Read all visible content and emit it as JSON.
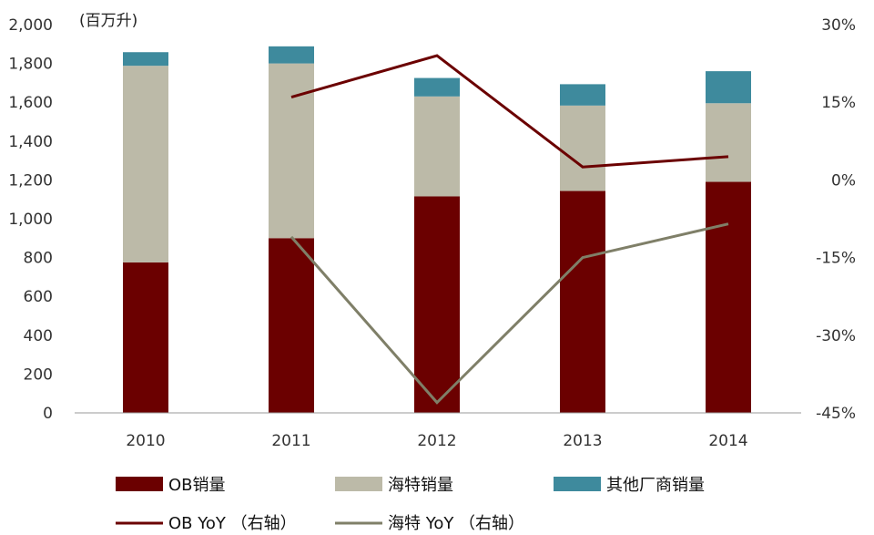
{
  "chart_data": {
    "type": "bar",
    "stacked": true,
    "unit_label": "(百万升)",
    "categories": [
      "2010",
      "2011",
      "2012",
      "2013",
      "2014"
    ],
    "ylim": [
      0,
      2000
    ],
    "yticks": [
      "2,000",
      "1,800",
      "1,600",
      "1,400",
      "1,200",
      "1,000",
      "800",
      "600",
      "400",
      "200",
      "0"
    ],
    "y2lim": [
      -45,
      30
    ],
    "y2ticks": [
      "30%",
      "15%",
      "0%",
      "-15%",
      "-30%",
      "-45%"
    ],
    "bar_series": [
      {
        "name": "OB销量",
        "color": "#6b0000",
        "values": [
          775,
          900,
          1115,
          1143,
          1190
        ]
      },
      {
        "name": "海特销量",
        "color": "#bcbaa8",
        "values": [
          1013,
          900,
          515,
          440,
          405
        ]
      },
      {
        "name": "其他厂商销量",
        "color": "#3e8a9d",
        "values": [
          70,
          88,
          95,
          110,
          165
        ]
      }
    ],
    "line_series": [
      {
        "name": "OB YoY （右轴）",
        "color": "#6b0000",
        "values": [
          null,
          16,
          24,
          2.5,
          4.5
        ]
      },
      {
        "name": "海特 YoY （右轴）",
        "color": "#7f7f68",
        "values": [
          null,
          -11,
          -43,
          -15,
          -8.5
        ]
      }
    ],
    "grid": false,
    "legend_position": "bottom"
  }
}
